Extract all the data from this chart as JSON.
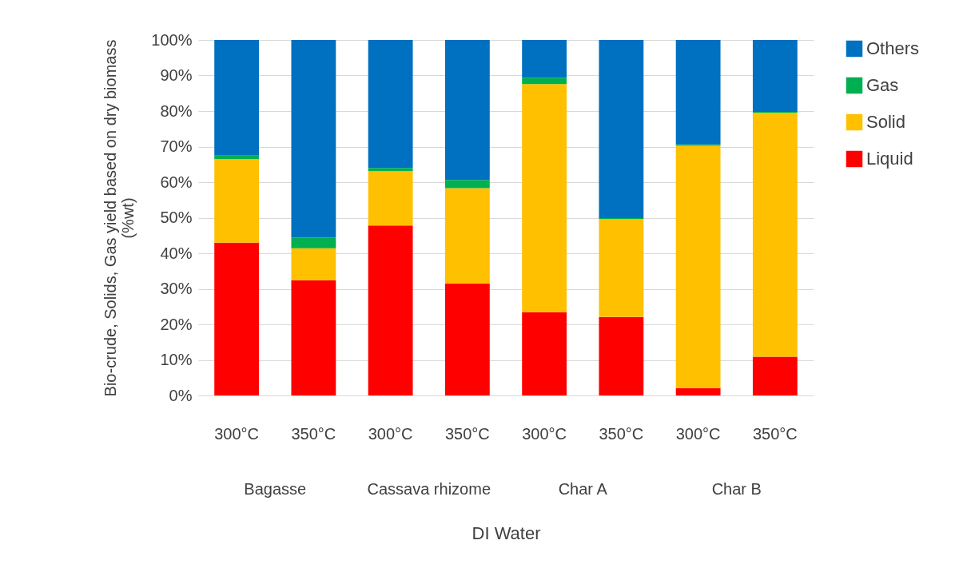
{
  "chart_data": {
    "type": "bar",
    "stacked": true,
    "xlabel": "DI Water",
    "ylabel": "Bio-crude, Solids, Gas yield based on dry biomass\n(%wt)",
    "categories": [
      "300°C",
      "350°C",
      "300°C",
      "350°C",
      "300°C",
      "350°C",
      "300°C",
      "350°C"
    ],
    "series": [
      {
        "name": "Liquid",
        "color": "#ff0000",
        "values": [
          43,
          32.4,
          47.8,
          31.5,
          23.4,
          22.1,
          2.1,
          10.9
        ]
      },
      {
        "name": "Solid",
        "color": "#ffc000",
        "values": [
          23.5,
          9,
          15.3,
          26.8,
          64.2,
          27.5,
          68.2,
          68.6
        ]
      },
      {
        "name": "Gas",
        "color": "#00b050",
        "values": [
          1,
          3,
          0.9,
          2.3,
          1.8,
          0.3,
          0.3,
          0.3
        ]
      },
      {
        "name": "Others",
        "color": "#0070c0",
        "values": [
          32.5,
          55.6,
          36,
          39.4,
          10.6,
          50.1,
          29.4,
          20.2
        ]
      }
    ],
    "annotations": [
      "Bagasse",
      "Cassava rhizome",
      "Char A",
      "Char B"
    ],
    "ylim": [
      0,
      100
    ],
    "yticks": [
      {
        "value": 0,
        "label": "0%"
      },
      {
        "value": 10,
        "label": "10%"
      },
      {
        "value": 20,
        "label": "20%"
      },
      {
        "value": 30,
        "label": "30%"
      },
      {
        "value": 40,
        "label": "40%"
      },
      {
        "value": 50,
        "label": "50%"
      },
      {
        "value": 60,
        "label": "60%"
      },
      {
        "value": 70,
        "label": "70%"
      },
      {
        "value": 80,
        "label": "80%"
      },
      {
        "value": 90,
        "label": "90%"
      },
      {
        "value": 100,
        "label": "100%"
      }
    ],
    "grid": "y",
    "legend": "right"
  }
}
